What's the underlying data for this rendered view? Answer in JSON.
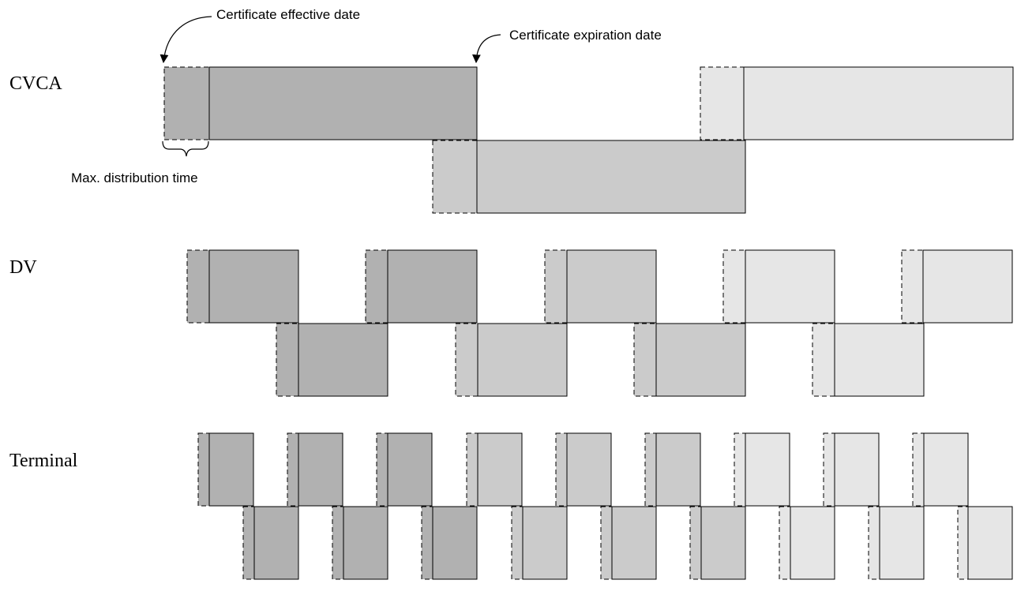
{
  "rows": {
    "cvca": "CVCA",
    "dv": "DV",
    "terminal": "Terminal"
  },
  "annotations": {
    "effective": "Certificate effective date",
    "expiration": "Certificate expiration date",
    "distribution": "Max. distribution time"
  },
  "colors": {
    "gen1": "#b1b1b1",
    "gen2": "#cbcbcb",
    "gen3": "#e6e6e6",
    "line": "#000000"
  }
}
